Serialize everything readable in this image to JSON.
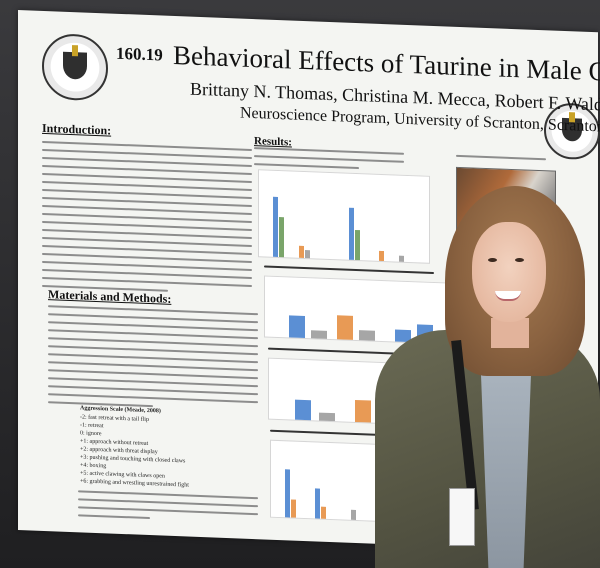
{
  "poster": {
    "number": "160.19",
    "title": "Behavioral Effects of Taurine in Male Crayfish",
    "authors": "Brittany N. Thomas, Christina M. Mecca, Robert F. Waldeck Ph.D.",
    "affiliation": "Neuroscience Program, University of Scranton, Scranton, PA",
    "sections": {
      "introduction": "Introduction:",
      "methods": "Materials and Methods:",
      "results": "Results:"
    },
    "aggression_scale": {
      "title": "Aggression Scale (Meade, 2008)",
      "items": [
        "-2: fast retreat with a tail flip",
        "-1: retreat",
        "0: ignore",
        "+1: approach without retreat",
        "+2: approach with threat display",
        "+3: pushing and touching with closed claws",
        "+4: boxing",
        "+5: active clawing with claws open",
        "+6: grabbing and wrestling unrestrained fight"
      ]
    }
  },
  "colors": {
    "bar_blue": "#5b8fd4",
    "bar_orange": "#e89a55",
    "bar_grey": "#a6a6a6",
    "bar_green": "#7aa56a",
    "poster_bg": "#f4f5f2",
    "coat": "#5a5a48"
  },
  "icons": {
    "left_seal": "university-seal-icon",
    "right_seal": "university-seal-icon"
  }
}
